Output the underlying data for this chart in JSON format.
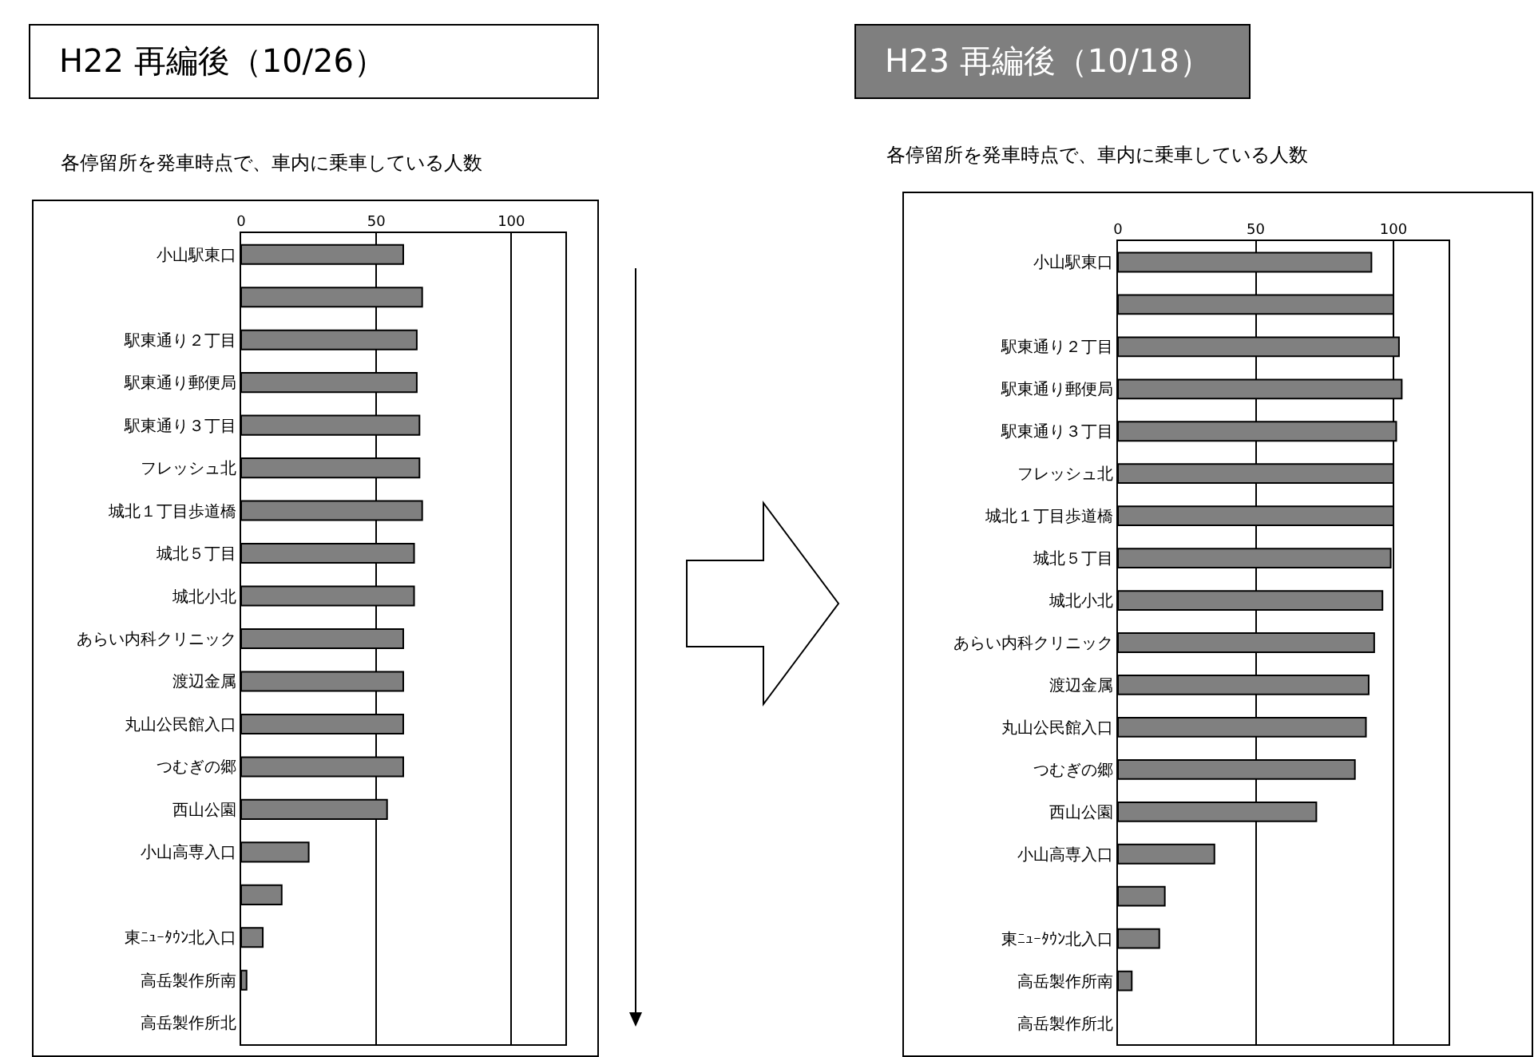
{
  "chart_data": [
    {
      "type": "bar",
      "orientation": "horizontal",
      "title": "H22 再編後（10/26）",
      "subtitle": "各停留所を発車時点で、車内に乗車している人数",
      "categories": [
        "小山駅東口",
        null,
        "駅東通り２丁目",
        "駅東通り郵便局",
        "駅東通り３丁目",
        "フレッシュ北",
        "城北１丁目歩道橋",
        "城北５丁目",
        "城北小北",
        "あらい内科クリニック",
        "渡辺金属",
        "丸山公民館入口",
        "つむぎの郷",
        "西山公園",
        "小山高専入口",
        null,
        "東ﾆｭｰﾀｳﾝ北入口",
        "高岳製作所南",
        "高岳製作所北"
      ],
      "color": "#808080",
      "values": [
        60,
        67,
        65,
        65,
        66,
        66,
        67,
        64,
        64,
        60,
        60,
        60,
        60,
        54,
        25,
        15,
        8,
        2,
        0
      ],
      "xlim": [
        0,
        120
      ],
      "xticks": [
        0,
        50,
        100
      ],
      "grid": "x"
    },
    {
      "type": "bar",
      "orientation": "horizontal",
      "title": "H23 再編後（10/18）",
      "subtitle": "各停留所を発車時点で、車内に乗車している人数",
      "categories": [
        "小山駅東口",
        null,
        "駅東通り２丁目",
        "駅東通り郵便局",
        "駅東通り３丁目",
        "フレッシュ北",
        "城北１丁目歩道橋",
        "城北５丁目",
        "城北小北",
        "あらい内科クリニック",
        "渡辺金属",
        "丸山公民館入口",
        "つむぎの郷",
        "西山公園",
        "小山高専入口",
        null,
        "東ﾆｭｰﾀｳﾝ北入口",
        "高岳製作所南",
        "高岳製作所北"
      ],
      "color": "#808080",
      "values": [
        92,
        100,
        102,
        103,
        101,
        100,
        100,
        99,
        96,
        93,
        91,
        90,
        86,
        72,
        35,
        17,
        15,
        5,
        0
      ],
      "xlim": [
        0,
        120
      ],
      "xticks": [
        0,
        50,
        100
      ],
      "grid": "x"
    }
  ]
}
